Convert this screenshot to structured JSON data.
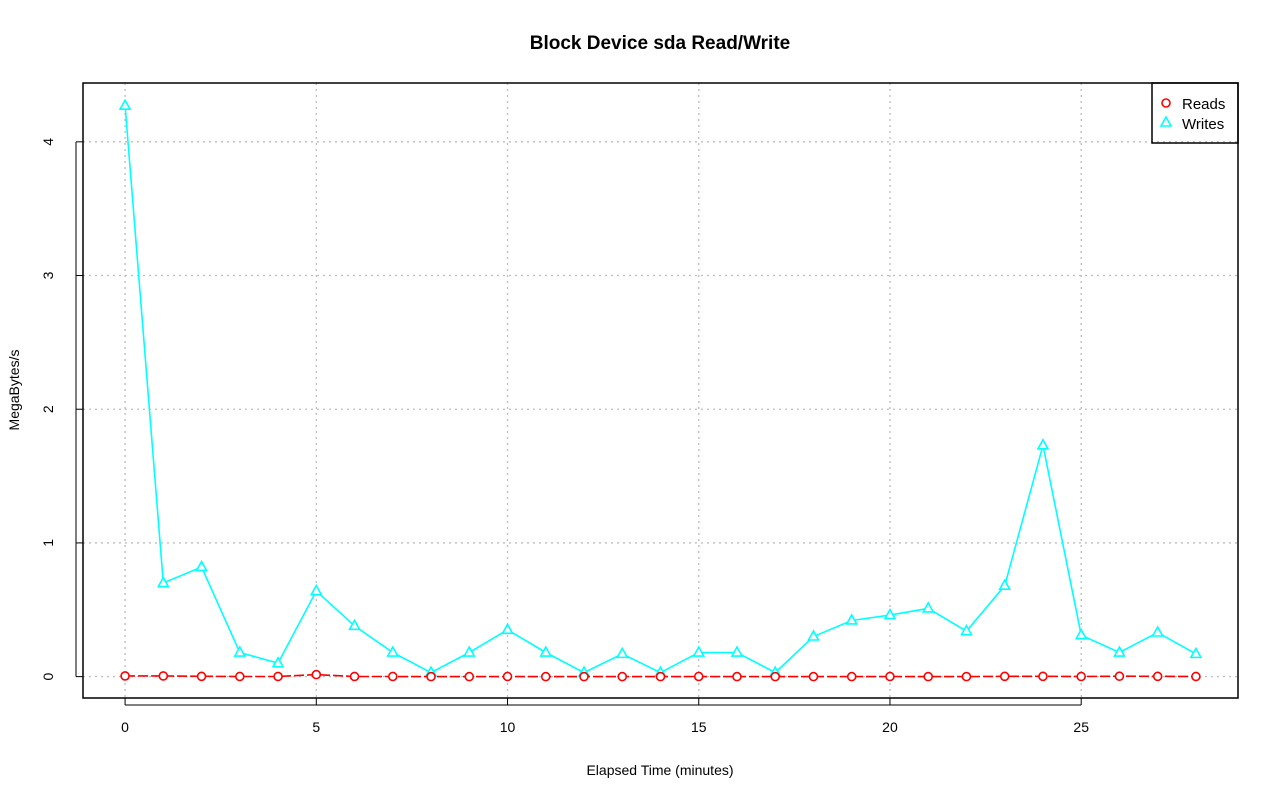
{
  "chart_data": {
    "type": "line",
    "title": "Block Device sda Read/Write",
    "xlabel": "Elapsed Time (minutes)",
    "ylabel": "MegaBytes/s",
    "xlim": [
      -1.1,
      29.1
    ],
    "ylim": [
      -0.16,
      4.44
    ],
    "x_ticks": [
      0,
      5,
      10,
      15,
      20,
      25
    ],
    "y_ticks": [
      0,
      1,
      2,
      3,
      4
    ],
    "grid": true,
    "legend_position": "top-right",
    "x": [
      0,
      1,
      2,
      3,
      4,
      5,
      6,
      7,
      8,
      9,
      10,
      11,
      12,
      13,
      14,
      15,
      16,
      17,
      18,
      19,
      20,
      21,
      22,
      23,
      24,
      25,
      26,
      27,
      28
    ],
    "series": [
      {
        "name": "Reads",
        "color": "#ff0000",
        "marker": "circle",
        "line_style": "dashed",
        "values": [
          0.005,
          0.005,
          0.002,
          0.001,
          0.001,
          0.015,
          0.001,
          0.001,
          0.0,
          0.0,
          0.001,
          0.0,
          0.0,
          0.0,
          0.0,
          0.001,
          0.0,
          0.0,
          0.0,
          0.0,
          0.001,
          0.0,
          0.0,
          0.002,
          0.002,
          0.001,
          0.003,
          0.002,
          0.001
        ]
      },
      {
        "name": "Writes",
        "color": "#00ffff",
        "marker": "triangle",
        "line_style": "solid",
        "values": [
          4.27,
          0.7,
          0.82,
          0.18,
          0.1,
          0.64,
          0.38,
          0.18,
          0.03,
          0.18,
          0.35,
          0.18,
          0.03,
          0.17,
          0.03,
          0.18,
          0.18,
          0.03,
          0.3,
          0.42,
          0.46,
          0.51,
          0.34,
          0.68,
          1.73,
          0.31,
          0.18,
          0.33,
          0.17
        ]
      }
    ]
  }
}
